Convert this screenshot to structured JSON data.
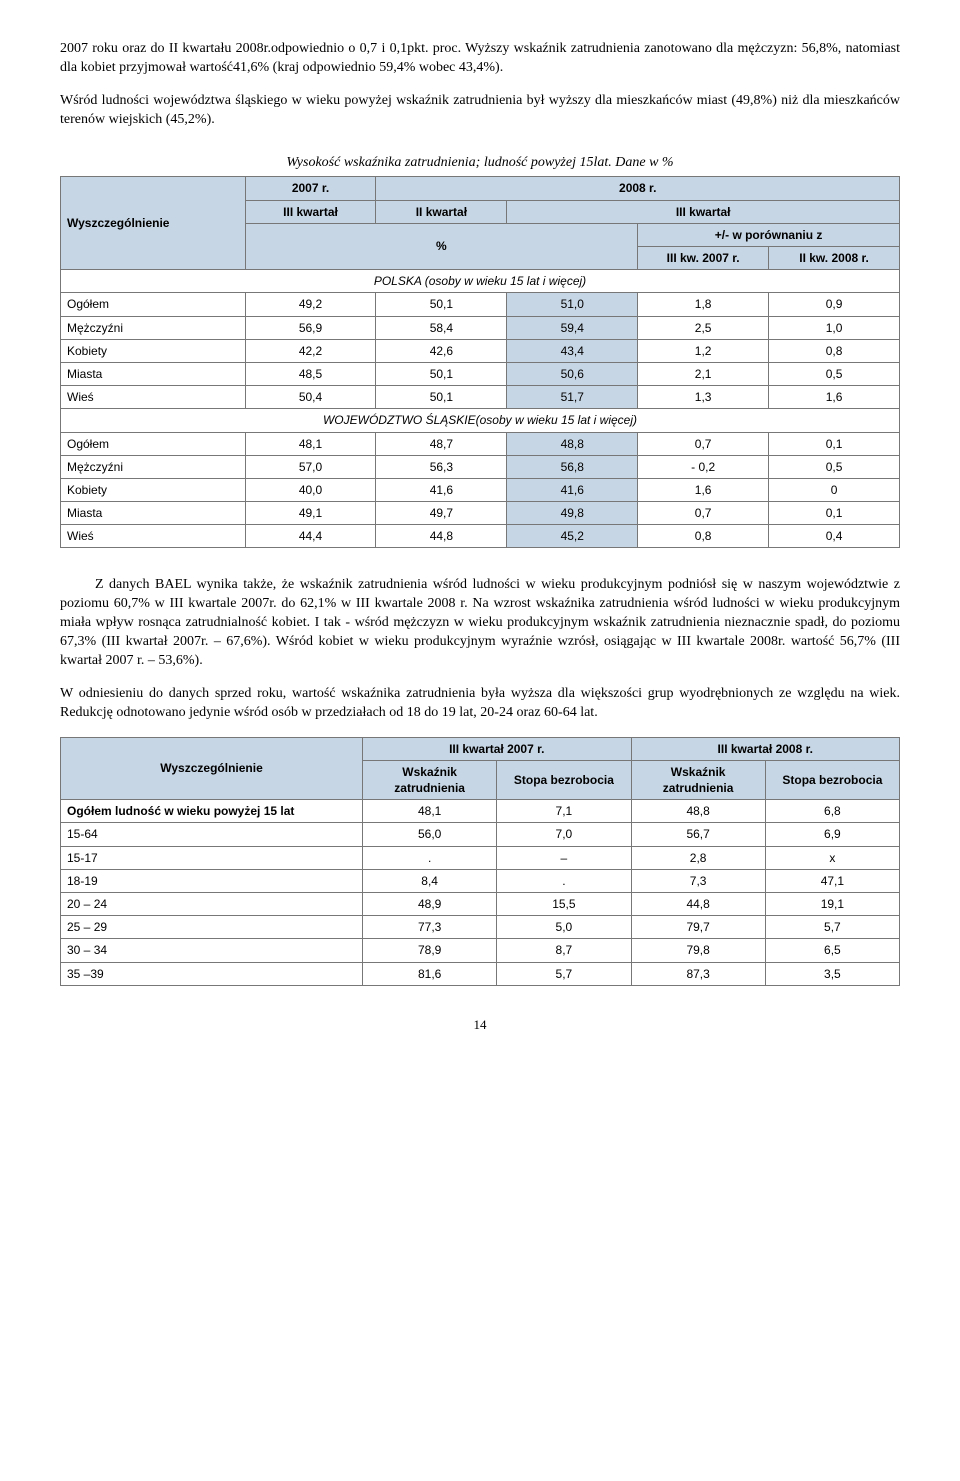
{
  "para1": "2007 roku oraz do II kwartału 2008r.odpowiednio o 0,7 i 0,1pkt. proc. Wyższy wskaźnik zatrudnienia zanotowano dla mężczyzn: 56,8%, natomiast dla kobiet przyjmował wartość41,6% (kraj odpowiednio 59,4% wobec 43,4%).",
  "para2": "Wśród ludności województwa śląskiego w wieku powyżej wskaźnik zatrudnienia był wyższy dla  mieszkańców miast (49,8%) niż dla mieszkańców terenów wiejskich (45,2%).",
  "caption1": "Wysokość wskaźnika zatrudnienia; ludność powyżej 15lat. Dane w %",
  "t1": {
    "wysz": "Wyszczególnienie",
    "y2007": "2007 r.",
    "y2008": "2008 r.",
    "k3": "III kwartał",
    "k2": "II kwartał",
    "pct": "%",
    "pm": "+/- w porównaniu z",
    "kw3_2007": "III kw. 2007 r.",
    "kw2_2008": "II kw. 2008 r.",
    "sec1": "POLSKA (osoby w wieku 15 lat i więcej)",
    "sec2": "WOJEWÓDZTWO ŚLĄSKIE(osoby w wieku 15 lat i więcej)",
    "rows1": [
      {
        "l": "Ogółem",
        "a": "49,2",
        "b": "50,1",
        "c": "51,0",
        "d": "1,8",
        "e": "0,9"
      },
      {
        "l": "Mężczyźni",
        "a": "56,9",
        "b": "58,4",
        "c": "59,4",
        "d": "2,5",
        "e": "1,0"
      },
      {
        "l": "Kobiety",
        "a": "42,2",
        "b": "42,6",
        "c": "43,4",
        "d": "1,2",
        "e": "0,8"
      },
      {
        "l": "Miasta",
        "a": "48,5",
        "b": "50,1",
        "c": "50,6",
        "d": "2,1",
        "e": "0,5"
      },
      {
        "l": "Wieś",
        "a": "50,4",
        "b": "50,1",
        "c": "51,7",
        "d": "1,3",
        "e": "1,6"
      }
    ],
    "rows2": [
      {
        "l": "Ogółem",
        "a": "48,1",
        "b": "48,7",
        "c": "48,8",
        "d": "0,7",
        "e": "0,1"
      },
      {
        "l": "Mężczyźni",
        "a": "57,0",
        "b": "56,3",
        "c": "56,8",
        "d": "- 0,2",
        "e": "0,5"
      },
      {
        "l": "Kobiety",
        "a": "40,0",
        "b": "41,6",
        "c": "41,6",
        "d": "1,6",
        "e": "0"
      },
      {
        "l": "Miasta",
        "a": "49,1",
        "b": "49,7",
        "c": "49,8",
        "d": "0,7",
        "e": "0,1"
      },
      {
        "l": "Wieś",
        "a": "44,4",
        "b": "44,8",
        "c": "45,2",
        "d": "0,8",
        "e": "0,4"
      }
    ]
  },
  "para3": "Z danych BAEL wynika także, że wskaźnik zatrudnienia wśród ludności w wieku produkcyjnym podniósł się w naszym województwie z poziomu 60,7% w III kwartale 2007r. do 62,1% w III kwartale 2008 r. Na wzrost wskaźnika zatrudnienia wśród ludności w wieku produkcyjnym miała wpływ rosnąca zatrudnialność kobiet. I tak - wśród mężczyzn w wieku produkcyjnym wskaźnik zatrudnienia nieznacznie spadł, do poziomu 67,3% (III kwartał 2007r. – 67,6%). Wśród kobiet w wieku produkcyjnym wyraźnie wzrósł, osiągając w III kwartale 2008r. wartość 56,7% (III kwartał 2007 r. – 53,6%).",
  "para4": "W odniesieniu do danych sprzed roku, wartość wskaźnika zatrudnienia była wyższa dla większości grup wyodrębnionych ze względu na wiek. Redukcję odnotowano jedynie wśród osób w przedziałach od 18 do 19 lat, 20-24 oraz 60-64 lat.",
  "t2": {
    "wysz": "Wyszczególnienie",
    "h3_2007": "III kwartał 2007 r.",
    "h3_2008": "III kwartał 2008 r.",
    "wz": "Wskaźnik zatrudnienia",
    "sb": "Stopa bezrobocia",
    "rows": [
      {
        "l": "Ogółem ludność w wieku powyżej 15 lat",
        "a": "48,1",
        "b": "7,1",
        "c": "48,8",
        "d": "6,8",
        "bold": true
      },
      {
        "l": "15-64",
        "a": "56,0",
        "b": "7,0",
        "c": "56,7",
        "d": "6,9"
      },
      {
        "l": "15-17",
        "a": ".",
        "b": "–",
        "c": "2,8",
        "d": "x"
      },
      {
        "l": "18-19",
        "a": "8,4",
        "b": ".",
        "c": "7,3",
        "d": "47,1"
      },
      {
        "l": "20 – 24",
        "a": "48,9",
        "b": "15,5",
        "c": "44,8",
        "d": "19,1"
      },
      {
        "l": "25 – 29",
        "a": "77,3",
        "b": "5,0",
        "c": "79,7",
        "d": "5,7"
      },
      {
        "l": "30 – 34",
        "a": "78,9",
        "b": "8,7",
        "c": "79,8",
        "d": "6,5"
      },
      {
        "l": "35 –39",
        "a": "81,6",
        "b": "5,7",
        "c": "87,3",
        "d": "3,5"
      }
    ]
  },
  "pageNum": "14"
}
